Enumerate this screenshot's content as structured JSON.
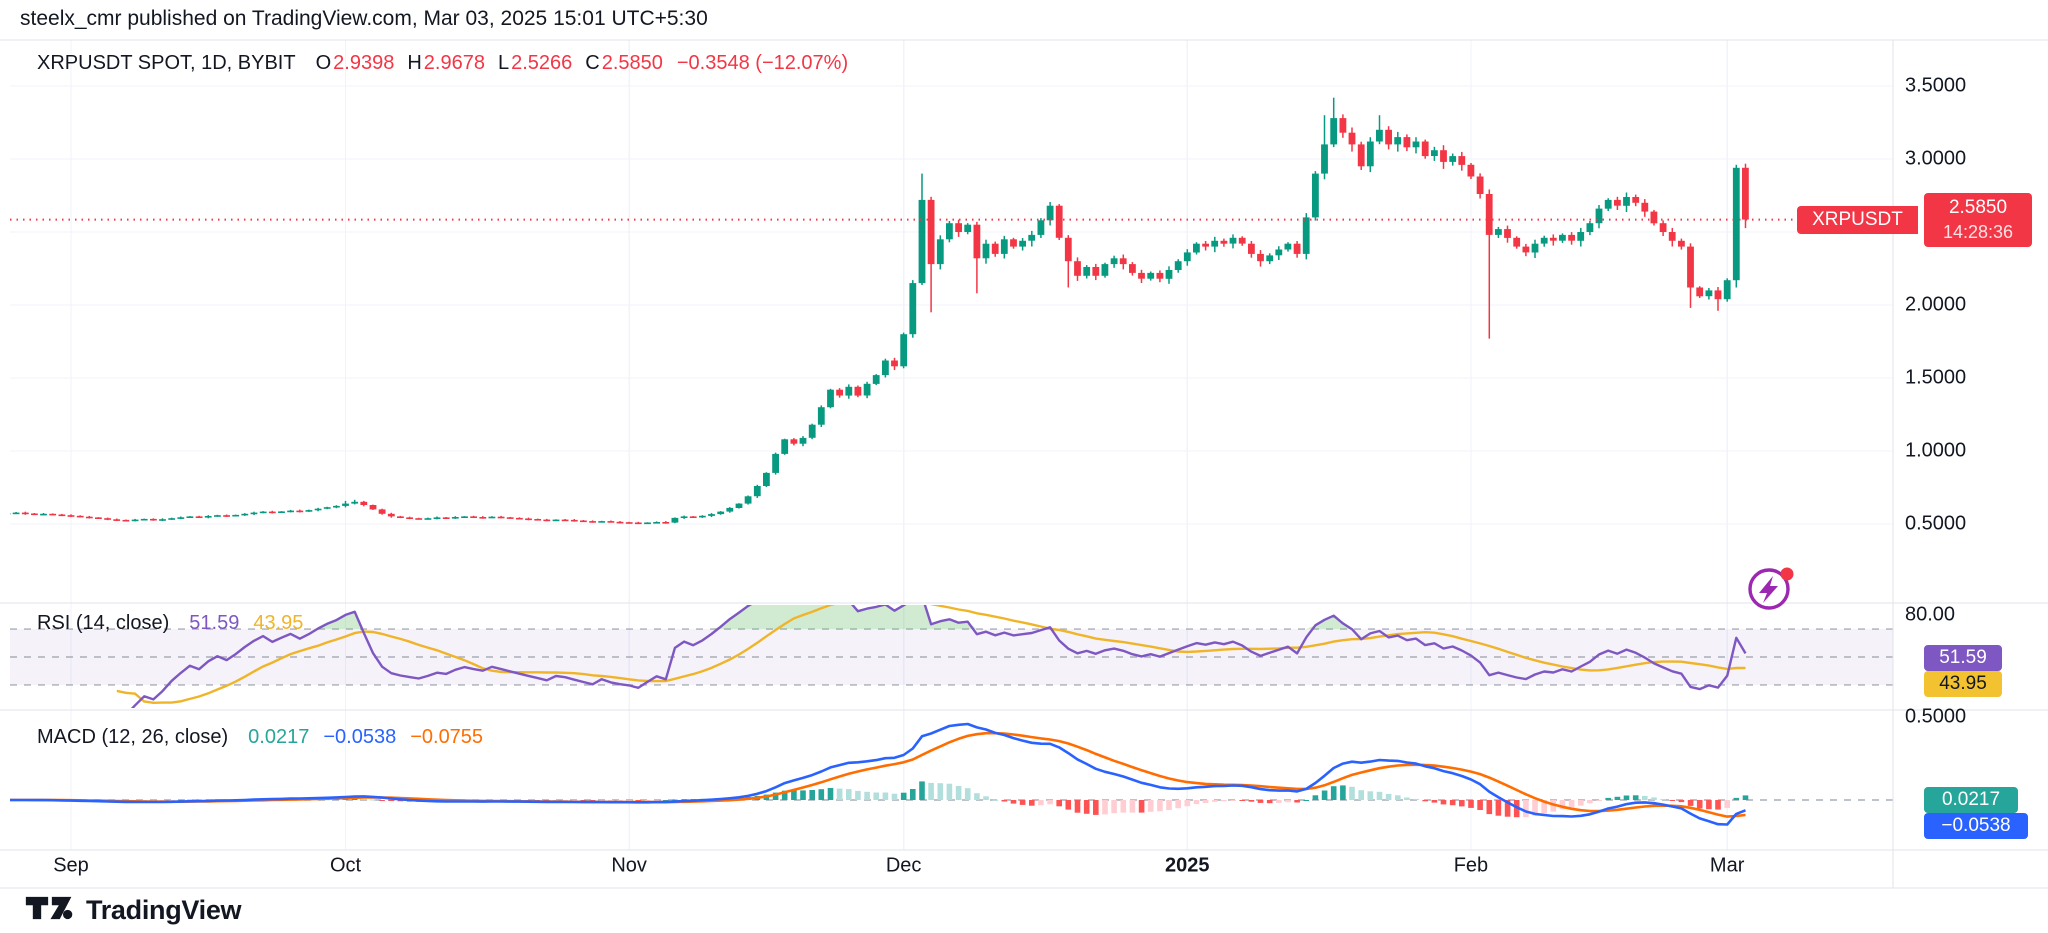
{
  "header": {
    "text": "steelx_cmr published on TradingView.com, Mar 03, 2025 15:01 UTC+5:30"
  },
  "legend": {
    "title": "XRPUSDT SPOT, 1D, BYBIT",
    "ohlc": [
      {
        "k": "O",
        "v": "2.9398"
      },
      {
        "k": "H",
        "v": "2.9678"
      },
      {
        "k": "L",
        "v": "2.5266"
      },
      {
        "k": "C",
        "v": "2.5850"
      }
    ],
    "change": "−0.3548 (−12.07%)"
  },
  "price_axis": {
    "labels": [
      {
        "label": "3.5000",
        "p": 3.5
      },
      {
        "label": "3.0000",
        "p": 3.0
      },
      {
        "label": "2.0000",
        "p": 2.0
      },
      {
        "label": "1.5000",
        "p": 1.5
      },
      {
        "label": "1.0000",
        "p": 1.0
      },
      {
        "label": "0.5000",
        "p": 0.5
      }
    ],
    "grid_prices": [
      3.5,
      3.0,
      2.5,
      2.0,
      1.5,
      1.0,
      0.5
    ],
    "current_price": 2.585,
    "badge": {
      "symbol": "XRPUSDT",
      "price": "2.5850",
      "time": "14:28:36"
    }
  },
  "time_axis": {
    "ticks": [
      {
        "label": "Sep",
        "i": 7
      },
      {
        "label": "Oct",
        "i": 37
      },
      {
        "label": "Nov",
        "i": 68
      },
      {
        "label": "Dec",
        "i": 98
      },
      {
        "label": "2025",
        "i": 129,
        "bold": true
      },
      {
        "label": "Feb",
        "i": 160
      },
      {
        "label": "Mar",
        "i": 188
      }
    ]
  },
  "rsi_pane": {
    "label": "RSI (14, close)",
    "value": "51.59",
    "ma_value": "43.95",
    "top_label": "80.00",
    "top_level": 80,
    "levels": [
      70,
      50,
      30
    ],
    "period": 14,
    "ma_period": 14
  },
  "macd_pane": {
    "label": "MACD (12, 26, close)",
    "hist_value": "0.0217",
    "macd_value": "−0.0538",
    "signal_value": "−0.0755",
    "scale_label": "0.5000",
    "scale_level": 0.5,
    "fast": 12,
    "slow": 26,
    "signal": 9
  },
  "footer": {
    "brand": "TradingView"
  },
  "colors": {
    "up": "#089981",
    "down": "#F23645",
    "accent_red": "#F23645",
    "rsi": "#7E57C2",
    "rsi_ma": "#F0B429",
    "rsi_badge_bg": "#F2C230",
    "rsi_band": "rgba(126,87,194,0.08)",
    "rsi_overbought_fill": "rgba(102,187,106,0.30)",
    "macd": "#2962FF",
    "signal": "#FF6D00",
    "hist_up": "#26A69A",
    "hist_up_fade": "#B2DFDB",
    "hist_dn": "#FF5252",
    "hist_dn_fade": "#FFCDD2",
    "grid": "#F0F3FA",
    "separator": "#E0E3EB",
    "dashed_level": "#A9ADB8",
    "flash_icon": "#9C27B0",
    "text": "#131722"
  },
  "chart_data": {
    "type": "candlestick",
    "symbol": "XRPUSDT",
    "exchange": "BYBIT",
    "interval": "1D",
    "title": "XRPUSDT SPOT, 1D, BYBIT",
    "ylim": [
      0.3,
      3.7
    ],
    "first_open": 0.572,
    "closes": [
      0.575,
      0.578,
      0.572,
      0.568,
      0.57,
      0.565,
      0.56,
      0.556,
      0.55,
      0.545,
      0.54,
      0.532,
      0.528,
      0.525,
      0.53,
      0.535,
      0.528,
      0.533,
      0.54,
      0.546,
      0.552,
      0.548,
      0.555,
      0.56,
      0.556,
      0.562,
      0.57,
      0.578,
      0.585,
      0.58,
      0.586,
      0.592,
      0.588,
      0.595,
      0.605,
      0.615,
      0.624,
      0.64,
      0.652,
      0.63,
      0.6,
      0.57,
      0.552,
      0.545,
      0.54,
      0.536,
      0.54,
      0.545,
      0.542,
      0.548,
      0.552,
      0.548,
      0.545,
      0.55,
      0.546,
      0.542,
      0.538,
      0.534,
      0.53,
      0.526,
      0.53,
      0.528,
      0.524,
      0.52,
      0.516,
      0.52,
      0.515,
      0.512,
      0.51,
      0.506,
      0.51,
      0.514,
      0.51,
      0.542,
      0.552,
      0.548,
      0.556,
      0.568,
      0.585,
      0.61,
      0.64,
      0.69,
      0.76,
      0.85,
      0.98,
      1.08,
      1.05,
      1.09,
      1.18,
      1.3,
      1.42,
      1.38,
      1.44,
      1.38,
      1.46,
      1.52,
      1.62,
      1.58,
      1.8,
      2.15,
      2.72,
      2.28,
      2.45,
      2.56,
      2.5,
      2.55,
      2.32,
      2.42,
      2.35,
      2.45,
      2.4,
      2.44,
      2.48,
      2.58,
      2.68,
      2.46,
      2.3,
      2.2,
      2.26,
      2.2,
      2.28,
      2.32,
      2.28,
      2.22,
      2.18,
      2.22,
      2.18,
      2.24,
      2.3,
      2.36,
      2.42,
      2.4,
      2.44,
      2.42,
      2.46,
      2.42,
      2.35,
      2.3,
      2.34,
      2.38,
      2.42,
      2.35,
      2.6,
      2.9,
      3.1,
      3.28,
      3.18,
      3.1,
      2.95,
      3.12,
      3.2,
      3.1,
      3.15,
      3.08,
      3.12,
      3.02,
      3.06,
      2.98,
      3.02,
      2.96,
      2.88,
      2.76,
      2.48,
      2.52,
      2.46,
      2.4,
      2.36,
      2.42,
      2.46,
      2.44,
      2.48,
      2.44,
      2.5,
      2.56,
      2.66,
      2.72,
      2.68,
      2.74,
      2.7,
      2.64,
      2.56,
      2.5,
      2.44,
      2.4,
      2.12,
      2.06,
      2.1,
      2.04,
      2.17,
      2.94,
      2.585
    ],
    "wick_base": 0.006,
    "wick_var": 0.01,
    "overrides": {
      "37": {
        "h": 0.658
      },
      "38": {
        "h": 0.666
      },
      "100": {
        "h": 2.9
      },
      "101": {
        "l": 1.95
      },
      "106": {
        "l": 2.08
      },
      "116": {
        "l": 2.12
      },
      "144": {
        "h": 3.3
      },
      "145": {
        "h": 3.42
      },
      "150": {
        "h": 3.3
      },
      "162": {
        "l": 1.77
      },
      "184": {
        "l": 1.98
      },
      "187": {
        "l": 1.96
      },
      "189": {
        "h": 2.96,
        "l": 2.12
      },
      "190": {
        "o": 2.9398,
        "h": 2.9678,
        "l": 2.5266
      }
    }
  }
}
